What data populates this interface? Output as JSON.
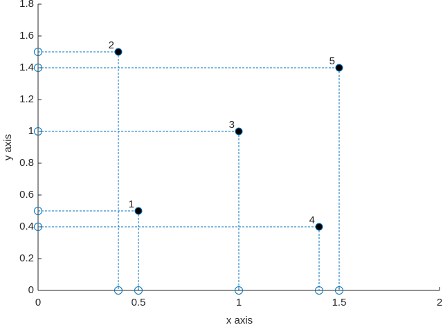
{
  "chart_data": {
    "type": "scatter",
    "x_label": "x axis",
    "y_label": "y axis",
    "x": [
      0.5,
      0.4,
      1,
      1.4,
      1.5
    ],
    "y": [
      0.5,
      1.5,
      1,
      0.4,
      1.4
    ],
    "point_labels": [
      "1",
      "2",
      "3",
      "4",
      "5"
    ],
    "color": "#0072bd",
    "marker_color": "#000000",
    "xlim": [
      0,
      2
    ],
    "xticks": [
      0,
      0.5,
      1,
      1.5,
      2
    ],
    "ylim": [
      0,
      1.8
    ],
    "yticks": [
      0,
      0.2,
      0.4,
      0.6,
      0.8,
      1,
      1.2,
      1.4,
      1.6,
      1.8
    ],
    "grid": false,
    "projections": true
  }
}
